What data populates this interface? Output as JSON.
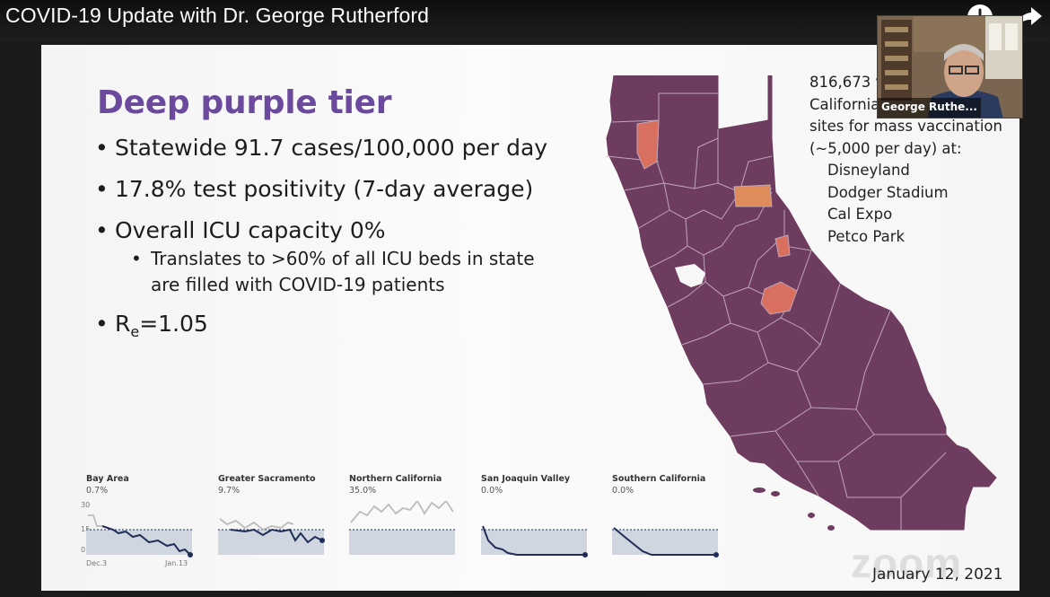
{
  "video": {
    "title": "COVID-19 Update with Dr. George Rutherford",
    "icons": [
      "clock-icon",
      "share-icon"
    ]
  },
  "slide": {
    "title": "Deep purple tier",
    "title_color": "#6b4a9e",
    "bullets": {
      "b1": "Statewide 91.7 cases/100,000 per day",
      "b2": "17.8% test positivity (7-day average)",
      "b3": "Overall ICU capacity 0%",
      "b3_sub": "Translates to >60% of all ICU beds in state are filled with COVID-19 patients",
      "b4_base": "R",
      "b4_sub": "e",
      "b4_value": "=1.05"
    },
    "vaccination": {
      "line1": "816,673 v",
      "line2": "California",
      "line3": "sites for mass vaccination",
      "line4": "(~5,000 per day) at:",
      "sites": [
        "Disneyland",
        "Dodger Stadium",
        "Cal Expo",
        "Petco Park"
      ]
    },
    "date": "January 12, 2021",
    "watermark": "zoom",
    "map_colors": {
      "purple": "#6e3c5e",
      "red": "#d9705f",
      "orange": "#de8c5a",
      "border": "#bfa6b8"
    },
    "regions": [
      {
        "name": "Bay Area",
        "value": "0.7%",
        "ymax": "30",
        "ymid": "15",
        "ymin": "0",
        "xstart": "Dec.3",
        "xend": "Jan.13"
      },
      {
        "name": "Greater Sacramento",
        "value": "9.7%"
      },
      {
        "name": "Northern California",
        "value": "35.0%"
      },
      {
        "name": "San Joaquin Valley",
        "value": "0.0%"
      },
      {
        "name": "Southern California",
        "value": "0.0%"
      }
    ]
  },
  "presenter": {
    "name": "George Ruthe..."
  }
}
